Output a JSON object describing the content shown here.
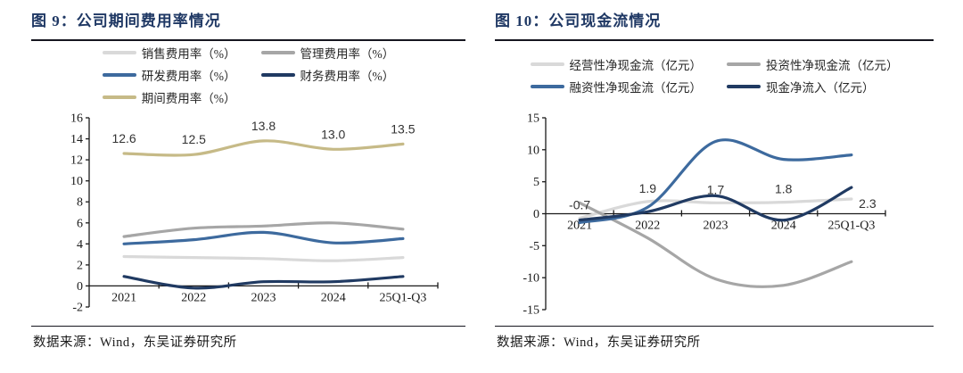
{
  "chart_data": [
    {
      "type": "line",
      "title": "图 9：公司期间费用率情况",
      "source": "数据来源：Wind，东吴证券研究所",
      "categories": [
        "2021",
        "2022",
        "2023",
        "2024",
        "25Q1-Q3"
      ],
      "ylim": [
        -2,
        16
      ],
      "ytick_step": 2,
      "grid": false,
      "legend_position": "top",
      "series": [
        {
          "name": "销售费用率（%）",
          "color": "#d9d9d9",
          "values": [
            2.8,
            2.7,
            2.6,
            2.4,
            2.7
          ]
        },
        {
          "name": "管理费用率（%）",
          "color": "#a6a6a6",
          "values": [
            4.7,
            5.5,
            5.7,
            6.0,
            5.4
          ]
        },
        {
          "name": "研发费用率（%）",
          "color": "#3d6a9e",
          "values": [
            4.0,
            4.4,
            5.1,
            4.1,
            4.5
          ]
        },
        {
          "name": "财务费用率（%）",
          "color": "#203a62",
          "values": [
            0.9,
            -0.2,
            0.4,
            0.4,
            0.9
          ]
        },
        {
          "name": "期间费用率（%）",
          "color": "#c6ba87",
          "values": [
            12.6,
            12.5,
            13.8,
            13.0,
            13.5
          ],
          "data_labels": [
            "12.6",
            "12.5",
            "13.8",
            "13.0",
            "13.5"
          ]
        }
      ]
    },
    {
      "type": "line",
      "title": "图 10：公司现金流情况",
      "source": "数据来源：Wind，东吴证券研究所",
      "categories": [
        "2021",
        "2022",
        "2023",
        "2024",
        "25Q1-Q3"
      ],
      "ylim": [
        -15,
        15
      ],
      "ytick_step": 5,
      "grid": false,
      "legend_position": "top",
      "series": [
        {
          "name": "经营性净现金流（亿元）",
          "color": "#d9d9d9",
          "values": [
            -0.7,
            1.9,
            1.7,
            1.8,
            2.3
          ],
          "data_labels": [
            "-0.7",
            "1.9",
            "1.7",
            "1.8",
            "2.3"
          ]
        },
        {
          "name": "投资性净现金流（亿元）",
          "color": "#a6a6a6",
          "values": [
            1.7,
            -3.8,
            -10.2,
            -11.2,
            -7.5
          ]
        },
        {
          "name": "融资性净现金流（亿元）",
          "color": "#3d6a9e",
          "values": [
            -1.4,
            1.0,
            11.3,
            8.5,
            9.2
          ]
        },
        {
          "name": "现金净流入（亿元）",
          "color": "#203a62",
          "values": [
            -1.0,
            0.3,
            2.8,
            -1.0,
            4.1
          ]
        }
      ]
    }
  ]
}
